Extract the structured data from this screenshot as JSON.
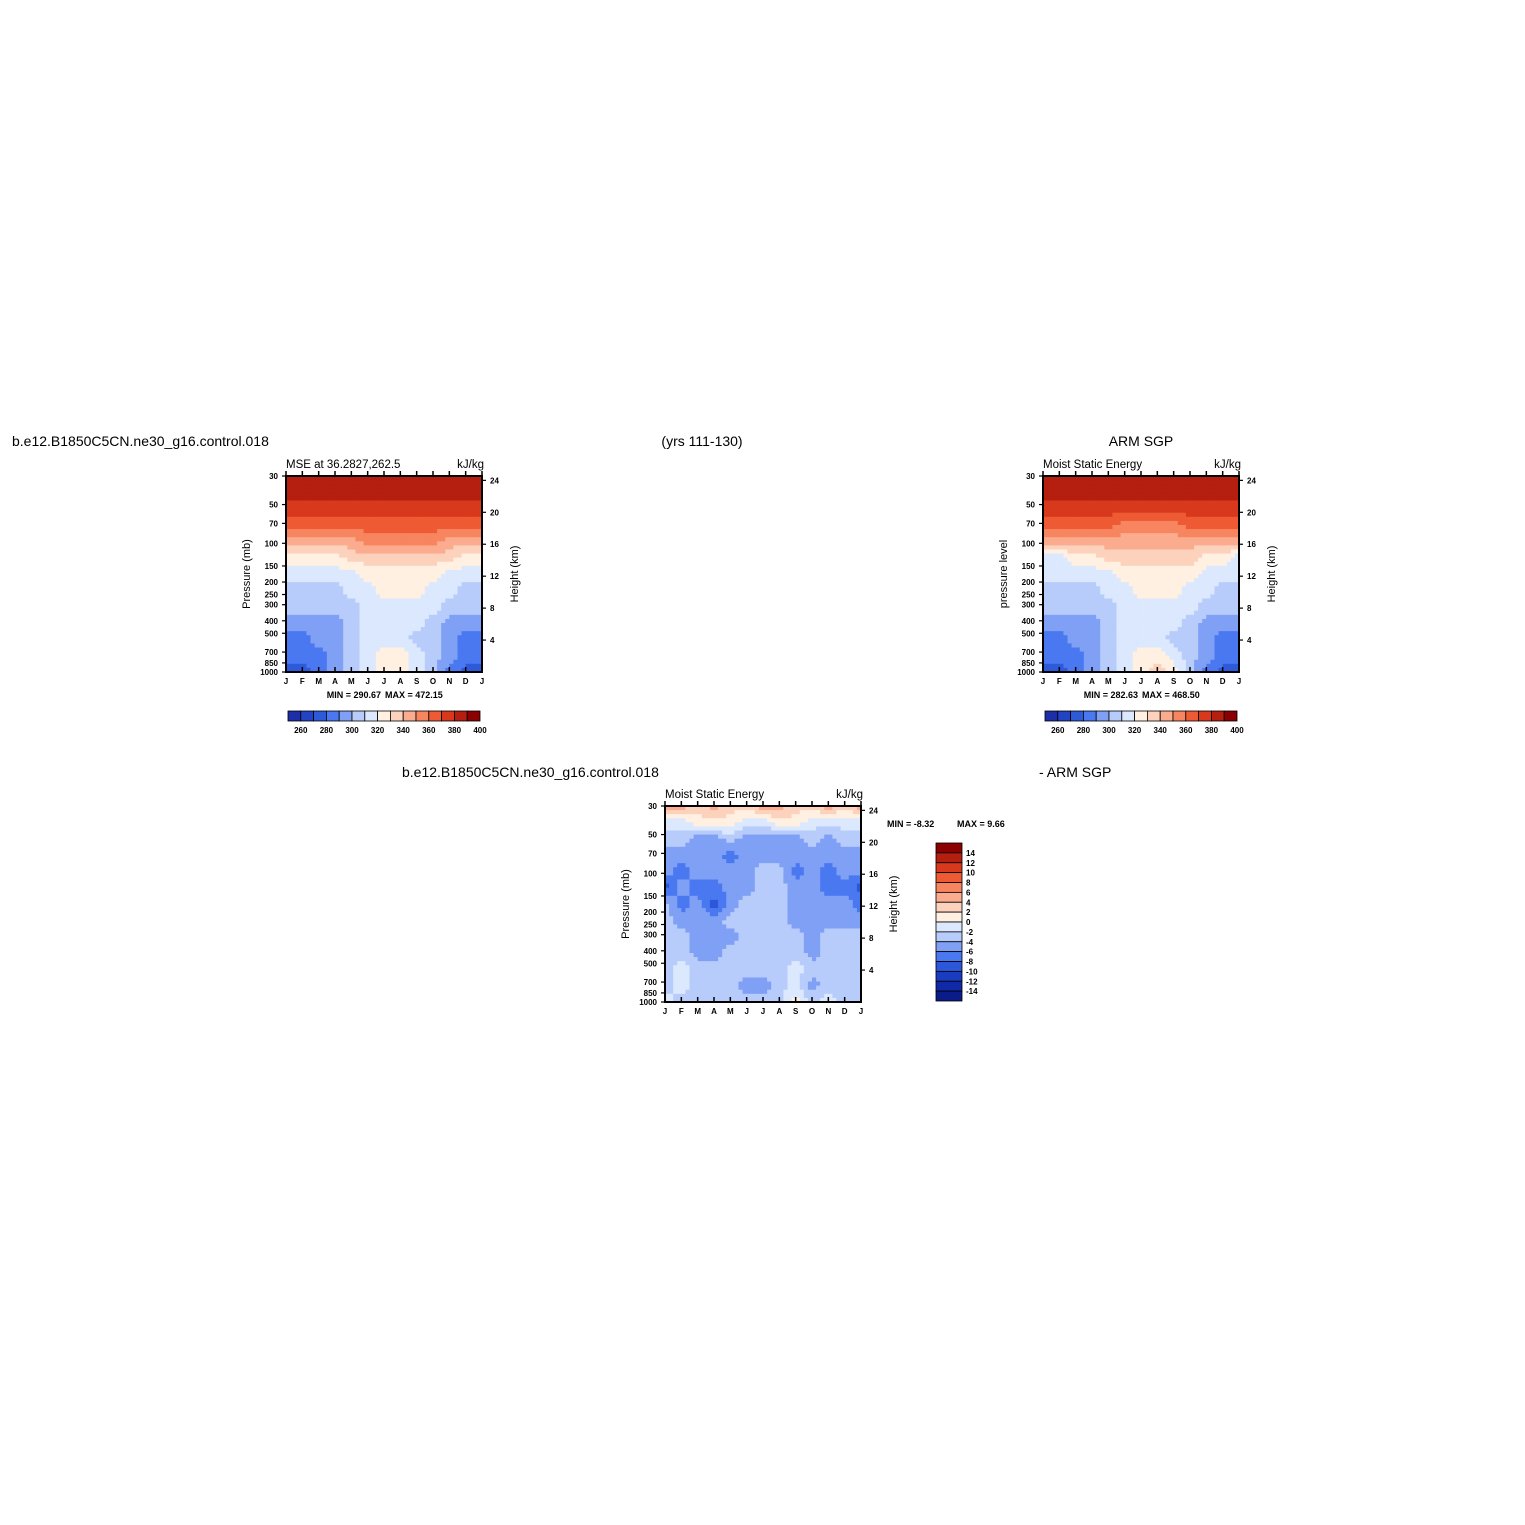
{
  "headers": {
    "case_name": "b.e12.B1850C5CN.ne30_g16.control.018",
    "years": "(yrs 111-130)",
    "obs_name": "ARM SGP",
    "diff_case_name": "b.e12.B1850C5CN.ne30_g16.control.018",
    "diff_obs_name": "- ARM SGP"
  },
  "common": {
    "months": [
      "J",
      "F",
      "M",
      "A",
      "M",
      "J",
      "J",
      "A",
      "S",
      "O",
      "N",
      "D",
      "J"
    ],
    "pressure_ticks": [
      "30",
      "50",
      "70",
      "100",
      "150",
      "200",
      "250",
      "300",
      "400",
      "500",
      "700",
      "850",
      "1000"
    ],
    "height_ticks": [
      "24",
      "20",
      "16",
      "12",
      "8",
      "4"
    ],
    "units": "kJ/kg"
  },
  "chart_data": [
    {
      "type": "heatmap",
      "subtitle": "MSE at 36.2827,262.5",
      "units": "kJ/kg",
      "ylabel_left": "Pressure (mb)",
      "ylabel_right": "Height (km)",
      "min_label": "MIN = 290.67",
      "max_label": "MAX = 472.15",
      "min": 290.67,
      "max": 472.15,
      "colorbar_ticks": [
        "260",
        "280",
        "300",
        "320",
        "340",
        "360",
        "380",
        "400"
      ],
      "colorbar_levels": [
        260,
        270,
        280,
        290,
        300,
        310,
        320,
        330,
        340,
        350,
        360,
        370,
        380,
        390,
        400
      ],
      "colors": [
        "#1c2fa8",
        "#2244c4",
        "#2d5ad8",
        "#4a78f0",
        "#7fa0f5",
        "#b7ccfb",
        "#dbe8fd",
        "#fff0e2",
        "#fdd2bd",
        "#fcac8e",
        "#f7855f",
        "#ee5a33",
        "#d8391c",
        "#b51f0f",
        "#8b0000"
      ],
      "field": [
        [
          13,
          13,
          13,
          13,
          13,
          13,
          13,
          13,
          13,
          13,
          13,
          13,
          13
        ],
        [
          13,
          13,
          13,
          13,
          13,
          13,
          13,
          13,
          13,
          13,
          13,
          13,
          13
        ],
        [
          12,
          12,
          12,
          12,
          12,
          12,
          12,
          12,
          12,
          12,
          12,
          12,
          12
        ],
        [
          11,
          11,
          11,
          11,
          11,
          11,
          11,
          11,
          11,
          11,
          11,
          11,
          11
        ],
        [
          9,
          9,
          9,
          9,
          9,
          10,
          10,
          10,
          10,
          10,
          9,
          9,
          9
        ],
        [
          7,
          7,
          7,
          7,
          8,
          8,
          8,
          8,
          8,
          8,
          8,
          7,
          7
        ],
        [
          6,
          6,
          6,
          6,
          6,
          7,
          7,
          7,
          7,
          7,
          6,
          6,
          6
        ],
        [
          5,
          5,
          5,
          5,
          6,
          6,
          7,
          7,
          7,
          6,
          6,
          5,
          5
        ],
        [
          5,
          5,
          5,
          5,
          5,
          6,
          6,
          6,
          6,
          6,
          5,
          5,
          5
        ],
        [
          4,
          4,
          4,
          4,
          5,
          6,
          6,
          6,
          6,
          5,
          4,
          4,
          4
        ],
        [
          3,
          3,
          4,
          4,
          5,
          6,
          6,
          6,
          5,
          5,
          4,
          3,
          3
        ],
        [
          3,
          3,
          3,
          4,
          5,
          6,
          7,
          7,
          6,
          5,
          4,
          3,
          3
        ],
        [
          2,
          2,
          3,
          4,
          5,
          6,
          7,
          7,
          6,
          5,
          3,
          2,
          2
        ]
      ]
    },
    {
      "type": "heatmap",
      "subtitle": "Moist Static Energy",
      "units": "kJ/kg",
      "ylabel_left": "pressure level",
      "ylabel_right": "Height (km)",
      "min_label": "MIN = 282.63",
      "max_label": "MAX = 468.50",
      "min": 282.63,
      "max": 468.5,
      "colorbar_ticks": [
        "260",
        "280",
        "300",
        "320",
        "340",
        "360",
        "380",
        "400"
      ],
      "colorbar_levels": [
        260,
        270,
        280,
        290,
        300,
        310,
        320,
        330,
        340,
        350,
        360,
        370,
        380,
        390,
        400
      ],
      "colors": [
        "#1c2fa8",
        "#2244c4",
        "#2d5ad8",
        "#4a78f0",
        "#7fa0f5",
        "#b7ccfb",
        "#dbe8fd",
        "#fff0e2",
        "#fdd2bd",
        "#fcac8e",
        "#f7855f",
        "#ee5a33",
        "#d8391c",
        "#b51f0f",
        "#8b0000"
      ],
      "field": [
        [
          13,
          13,
          13,
          13,
          13,
          13,
          13,
          13,
          13,
          13,
          13,
          13,
          13
        ],
        [
          13,
          13,
          13,
          13,
          13,
          13,
          13,
          13,
          13,
          13,
          13,
          13,
          13
        ],
        [
          12,
          12,
          12,
          12,
          12,
          12,
          12,
          12,
          12,
          12,
          12,
          12,
          12
        ],
        [
          11,
          11,
          11,
          11,
          11,
          10,
          10,
          10,
          10,
          11,
          11,
          11,
          11
        ],
        [
          9,
          9,
          9,
          9,
          9,
          9,
          9,
          9,
          9,
          9,
          9,
          9,
          9
        ],
        [
          6,
          6,
          7,
          7,
          8,
          8,
          8,
          8,
          8,
          8,
          7,
          7,
          6
        ],
        [
          6,
          6,
          6,
          6,
          6,
          7,
          7,
          7,
          7,
          7,
          6,
          6,
          6
        ],
        [
          5,
          5,
          5,
          5,
          6,
          6,
          7,
          7,
          7,
          6,
          6,
          5,
          5
        ],
        [
          5,
          5,
          5,
          5,
          5,
          6,
          6,
          6,
          6,
          6,
          5,
          5,
          5
        ],
        [
          4,
          4,
          4,
          4,
          5,
          6,
          6,
          6,
          6,
          5,
          4,
          4,
          4
        ],
        [
          3,
          3,
          4,
          4,
          5,
          6,
          6,
          6,
          5,
          5,
          4,
          3,
          3
        ],
        [
          3,
          3,
          3,
          4,
          5,
          6,
          7,
          7,
          6,
          5,
          4,
          3,
          3
        ],
        [
          2,
          2,
          3,
          4,
          5,
          6,
          7,
          8,
          7,
          5,
          3,
          2,
          2
        ]
      ]
    },
    {
      "type": "heatmap",
      "subtitle": "Moist Static Energy",
      "units": "kJ/kg",
      "ylabel_left": "Pressure (mb)",
      "ylabel_right": "Height (km)",
      "min_label": "MIN = -8.32",
      "max_label": "MAX = 9.66",
      "min": -8.32,
      "max": 9.66,
      "colorbar_ticks": [
        "14",
        "12",
        "10",
        "8",
        "6",
        "4",
        "2",
        "0",
        "-2",
        "-4",
        "-6",
        "-8",
        "-10",
        "-12",
        "-14"
      ],
      "colorbar_levels": [
        -14,
        -12,
        -10,
        -8,
        -6,
        -4,
        -2,
        0,
        2,
        4,
        6,
        8,
        10,
        12,
        14
      ],
      "colors": [
        "#0a1c8a",
        "#1029a6",
        "#1a3cc0",
        "#2c57d8",
        "#4a78f0",
        "#7fa0f5",
        "#b7ccfb",
        "#dbe8fd",
        "#fff0e2",
        "#fdd2bd",
        "#fcac8e",
        "#f7855f",
        "#ee5a33",
        "#d8391c",
        "#b51f0f",
        "#8b0000"
      ],
      "field": [
        [
          11,
          10,
          9,
          10,
          9,
          9,
          10,
          10,
          9,
          9,
          10,
          9,
          10
        ],
        [
          7,
          7,
          8,
          8,
          8,
          7,
          7,
          8,
          8,
          7,
          7,
          7,
          7
        ],
        [
          6,
          6,
          5,
          5,
          6,
          5,
          5,
          5,
          5,
          6,
          5,
          6,
          6
        ],
        [
          5,
          5,
          5,
          5,
          4,
          5,
          5,
          5,
          5,
          5,
          5,
          5,
          5
        ],
        [
          5,
          4,
          5,
          5,
          5,
          5,
          6,
          6,
          4,
          5,
          4,
          5,
          5
        ],
        [
          3,
          5,
          4,
          4,
          5,
          5,
          6,
          6,
          5,
          5,
          4,
          4,
          3
        ],
        [
          6,
          4,
          5,
          3,
          5,
          6,
          6,
          6,
          5,
          5,
          5,
          5,
          4
        ],
        [
          6,
          5,
          5,
          5,
          6,
          6,
          6,
          6,
          5,
          5,
          5,
          5,
          5
        ],
        [
          6,
          6,
          5,
          5,
          5,
          6,
          6,
          6,
          6,
          5,
          6,
          6,
          6
        ],
        [
          6,
          6,
          5,
          5,
          6,
          6,
          6,
          6,
          6,
          5,
          6,
          6,
          6
        ],
        [
          6,
          7,
          6,
          6,
          6,
          6,
          6,
          6,
          7,
          6,
          6,
          6,
          6
        ],
        [
          6,
          7,
          6,
          6,
          6,
          5,
          5,
          6,
          7,
          5,
          6,
          6,
          6
        ],
        [
          7,
          6,
          6,
          6,
          6,
          6,
          6,
          6,
          8,
          6,
          7,
          6,
          6
        ]
      ]
    }
  ]
}
